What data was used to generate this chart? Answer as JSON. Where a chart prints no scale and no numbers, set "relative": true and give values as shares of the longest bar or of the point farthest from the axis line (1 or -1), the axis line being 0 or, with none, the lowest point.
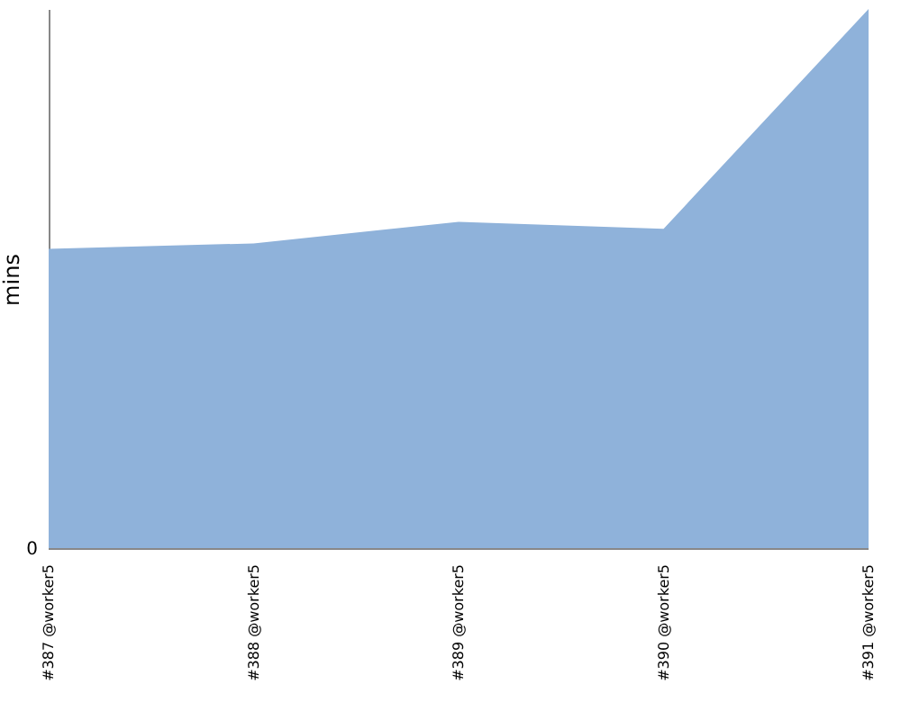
{
  "chart_data": {
    "type": "area",
    "relative": true,
    "ylabel": "mins",
    "categories": [
      "#387 @worker5",
      "#388 @worker5",
      "#389 @worker5",
      "#390 @worker5",
      "#391 @worker5"
    ],
    "series": [
      {
        "color": "#8fb2da",
        "values": [
          0.556,
          0.566,
          0.606,
          0.593,
          1
        ]
      }
    ],
    "annotations": [
      "0"
    ]
  }
}
